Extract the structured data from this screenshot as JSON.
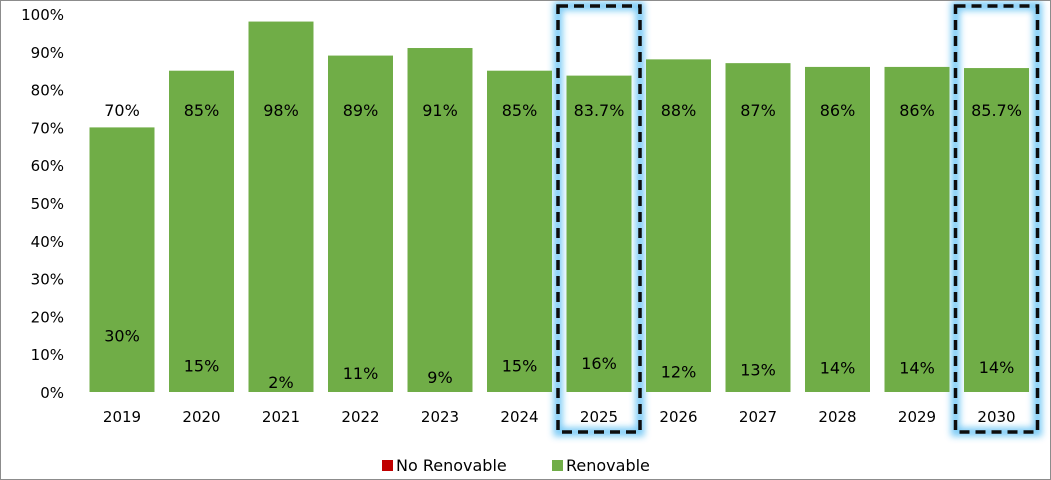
{
  "chart_data": {
    "type": "bar",
    "stacked": true,
    "categories": [
      "2019",
      "2020",
      "2021",
      "2022",
      "2023",
      "2024",
      "2025",
      "2026",
      "2027",
      "2028",
      "2029",
      "2030"
    ],
    "series": [
      {
        "name": "No Renovable",
        "color": "#c00000",
        "values": [
          30,
          15,
          2,
          11,
          9,
          15,
          16.3,
          12,
          13,
          14,
          14,
          14.3
        ],
        "labels": [
          "30%",
          "15%",
          "2%",
          "11%",
          "9%",
          "15%",
          "16%",
          "12%",
          "13%",
          "14%",
          "14%",
          "14%"
        ]
      },
      {
        "name": "Renovable",
        "color": "#70ad47",
        "values": [
          70,
          85,
          98,
          89,
          91,
          85,
          83.7,
          88,
          87,
          86,
          86,
          85.7
        ],
        "labels": [
          "70%",
          "85%",
          "98%",
          "89%",
          "91%",
          "85%",
          "83.7%",
          "88%",
          "87%",
          "86%",
          "86%",
          "85.7%"
        ]
      }
    ],
    "yticks": [
      "0%",
      "10%",
      "20%",
      "30%",
      "40%",
      "50%",
      "60%",
      "70%",
      "80%",
      "90%",
      "100%"
    ],
    "ylim": [
      0,
      100
    ],
    "highlighted_categories": [
      "2025",
      "2030"
    ],
    "legend_position": "bottom"
  }
}
